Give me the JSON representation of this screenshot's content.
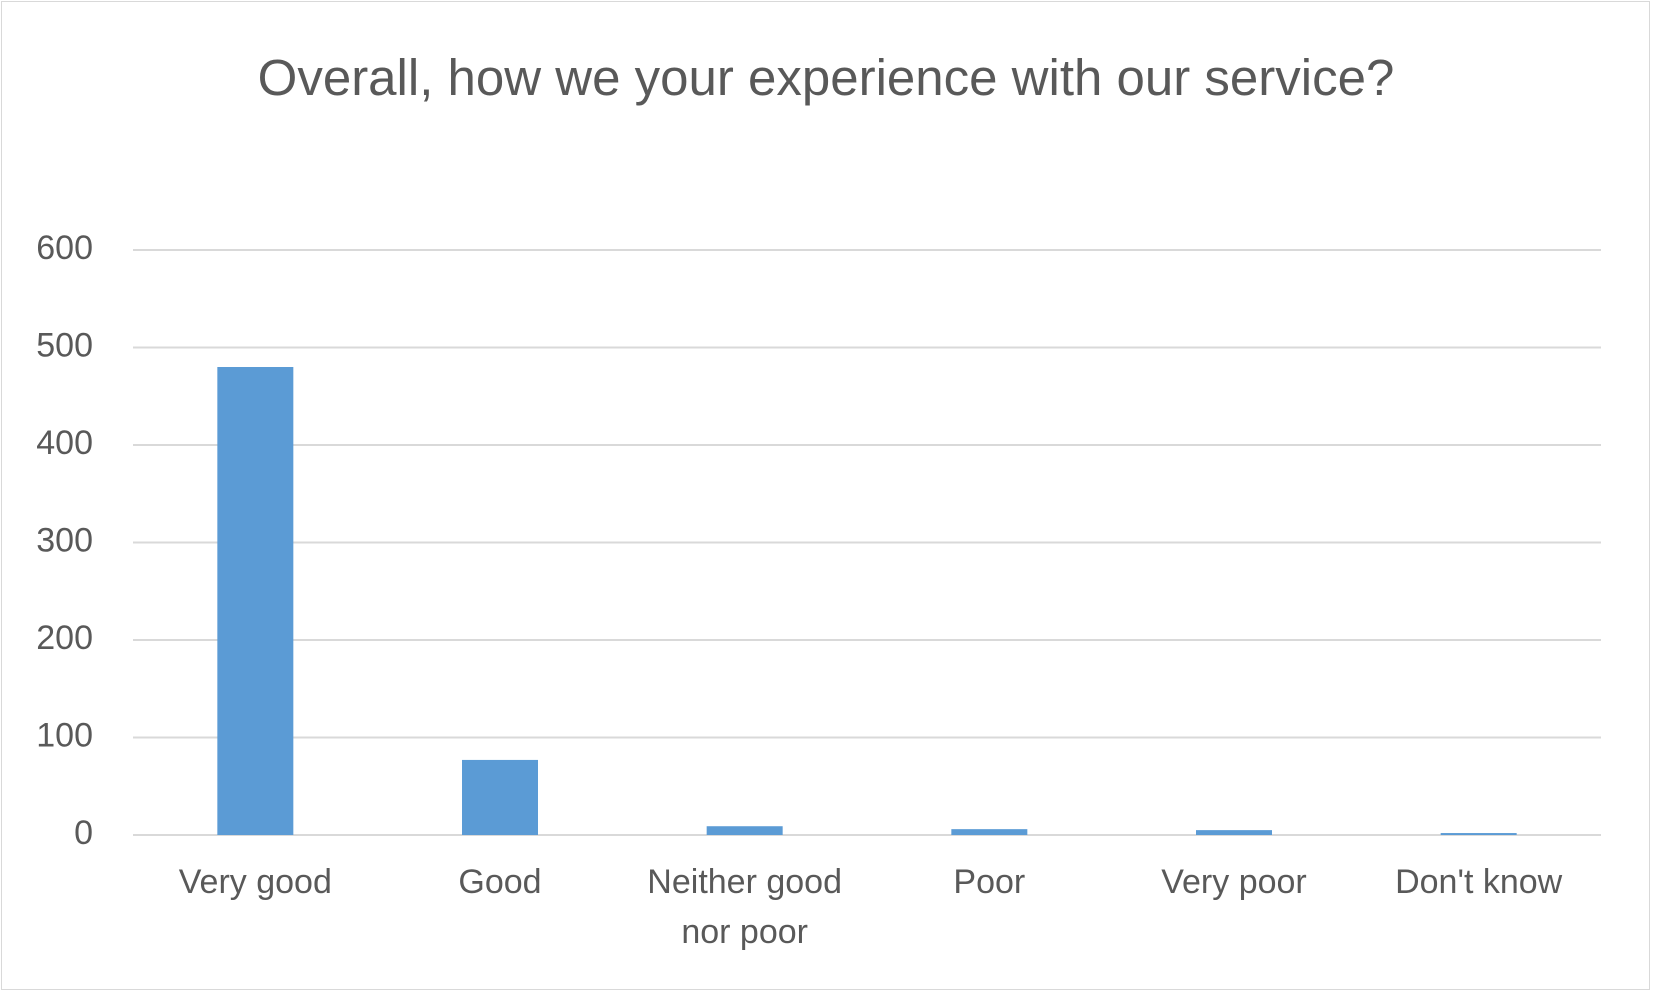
{
  "chart_data": {
    "type": "bar",
    "title": "Overall, how we your experience with our service?",
    "categories": [
      "Very good",
      "Good",
      "Neither good nor poor",
      "Poor",
      "Very poor",
      "Don't know"
    ],
    "values": [
      480,
      77,
      9,
      6,
      5,
      2
    ],
    "color": "#5b9bd5",
    "ylim": [
      0,
      600
    ],
    "yticks": [
      0,
      100,
      200,
      300,
      400,
      500,
      600
    ],
    "grid": true
  }
}
